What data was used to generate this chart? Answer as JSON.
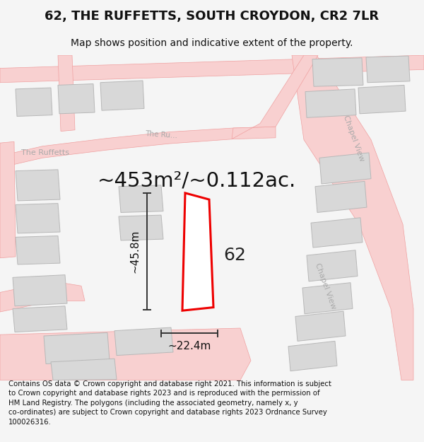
{
  "title": "62, THE RUFFETTS, SOUTH CROYDON, CR2 7LR",
  "subtitle": "Map shows position and indicative extent of the property.",
  "footer": "Contains OS data © Crown copyright and database right 2021. This information is subject\nto Crown copyright and database rights 2023 and is reproduced with the permission of\nHM Land Registry. The polygons (including the associated geometry, namely x, y\nco-ordinates) are subject to Crown copyright and database rights 2023 Ordnance Survey\n100026316.",
  "area_label": "~453m²/~0.112ac.",
  "number_label": "62",
  "dim_width": "~22.4m",
  "dim_height": "~45.8m",
  "bg_color": "#f5f5f5",
  "map_bg": "#ffffff",
  "road_color": "#f8d0d0",
  "road_stroke": "#f0a0a0",
  "building_fill": "#d8d8d8",
  "building_stroke": "#b8b8b8",
  "road_label_color": "#aaaaaa",
  "plot_color": "#ee0000",
  "plot_linewidth": 2.2,
  "dim_color": "#333333",
  "title_fontsize": 13,
  "subtitle_fontsize": 10,
  "footer_fontsize": 7.3,
  "area_fontsize": 21,
  "number_fontsize": 18,
  "dim_fontsize": 11
}
